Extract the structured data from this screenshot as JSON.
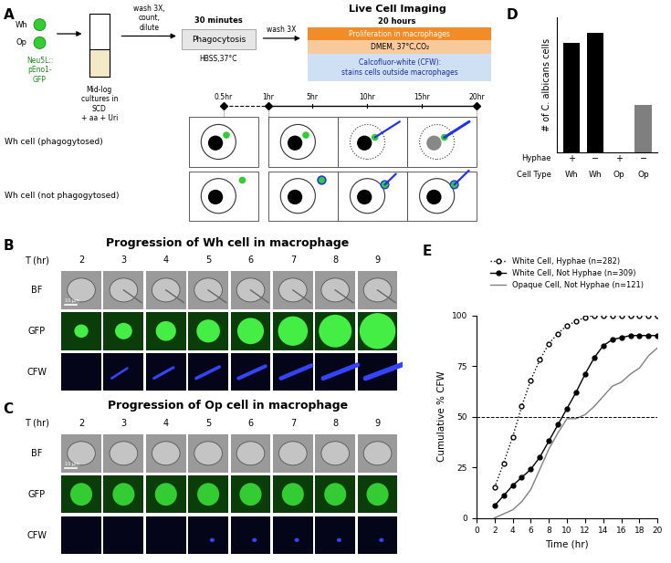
{
  "panel_labels": [
    "A",
    "B",
    "C",
    "D",
    "E"
  ],
  "panel_a": {
    "strains": [
      "Wh",
      "Op"
    ],
    "reporter": "Neu5L::\npEno1-\nGFP",
    "culture": "Mid-log\ncultures in\nSCD\n+ aa + Uri",
    "step1": "wash 3X,\ncount,\ndilute",
    "phagocytosis": {
      "duration": "30 minutes",
      "title": "Phagocytosis",
      "condition": "HBSS,37°C"
    },
    "step2": "wash 3X",
    "imaging": {
      "title": "Live Cell Imaging",
      "duration": "20 hours",
      "steps": [
        "Proliferation in macrophages",
        "DMEM, 37°C,CO₂",
        "Calcofluor-white (CFW):\nstains cells outside macrophages"
      ]
    },
    "timeline": [
      {
        "value": 0.5,
        "label": "0.5hr"
      },
      {
        "value": 1,
        "label": "1hr"
      },
      {
        "value": 5,
        "label": "5hr"
      },
      {
        "value": 10,
        "label": "10hr"
      },
      {
        "value": 15,
        "label": "15hr"
      },
      {
        "value": 20,
        "label": "20hr"
      }
    ],
    "rows": [
      "Wh cell (phagogytosed)",
      "Wh cell (not phagogytosed)"
    ]
  },
  "panel_b": {
    "title": "Progression of Wh cell in macrophage",
    "time_label": "T (hr)",
    "times": [
      2,
      3,
      4,
      5,
      6,
      7,
      8,
      9
    ],
    "channels": [
      "BF",
      "GFP",
      "CFW"
    ],
    "scale_bar": "10 µm"
  },
  "panel_c": {
    "title": "Progression of Op cell in macrophage",
    "time_label": "T (hr)",
    "times": [
      2,
      3,
      4,
      5,
      6,
      7,
      8,
      9
    ],
    "channels": [
      "BF",
      "GFP",
      "CFW"
    ],
    "scale_bar": "10 µm"
  },
  "chart_data": [
    {
      "type": "bar",
      "ylabel": "# of C. albicans cells",
      "categories": [
        "+",
        "−",
        "+",
        "−"
      ],
      "cell_types": [
        "Wh",
        "Wh",
        "Op",
        "Op"
      ],
      "row_labels": [
        "Hyphae",
        "Cell Type"
      ],
      "values": [
        282,
        309,
        0,
        121
      ],
      "colors": [
        "#000000",
        "#000000",
        "#7f7f7f",
        "#7f7f7f"
      ],
      "ylim": [
        0,
        350
      ],
      "tick_labels": "x"
    },
    {
      "type": "line",
      "xlabel": "Time (hr)",
      "ylabel": "Cumulative % CFW",
      "x": [
        2,
        3,
        4,
        5,
        6,
        7,
        8,
        9,
        10,
        11,
        12,
        13,
        14,
        15,
        16,
        17,
        18,
        19,
        20
      ],
      "series": [
        {
          "name": "White Cell, Hyphae (n=282)",
          "color": "#000000",
          "marker": "open circle",
          "line_style": "dotted",
          "values": [
            15,
            27,
            40,
            55,
            68,
            78,
            86,
            91,
            95,
            97,
            99,
            100,
            100,
            100,
            100,
            100,
            100,
            100,
            100
          ]
        },
        {
          "name": "White Cell, Not Hyphae (n=309)",
          "color": "#000000",
          "marker": "circle",
          "line_style": "solid",
          "values": [
            6,
            11,
            16,
            20,
            24,
            30,
            38,
            46,
            54,
            62,
            71,
            79,
            85,
            88,
            89,
            90,
            90,
            90,
            90
          ]
        },
        {
          "name": "Opaque Cell, Not Hyphae (n=121)",
          "color": "#808080",
          "marker": "none",
          "line_style": "solid",
          "values": [
            0,
            2,
            4,
            8,
            14,
            24,
            34,
            42,
            49,
            49,
            51,
            55,
            60,
            65,
            67,
            71,
            74,
            80,
            84
          ]
        }
      ],
      "reference_line": 50,
      "xlim": [
        0,
        20
      ],
      "xticks": [
        0,
        2,
        4,
        6,
        8,
        10,
        12,
        14,
        16,
        18,
        20
      ],
      "ylim": [
        0,
        100
      ],
      "yticks": [
        0,
        25,
        50,
        75,
        100
      ],
      "legend": "upper center"
    }
  ]
}
